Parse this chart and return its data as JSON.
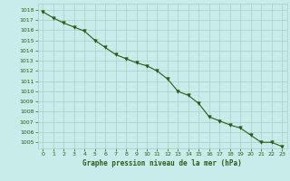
{
  "x": [
    0,
    1,
    2,
    3,
    4,
    5,
    6,
    7,
    8,
    9,
    10,
    11,
    12,
    13,
    14,
    15,
    16,
    17,
    18,
    19,
    20,
    21,
    22,
    23
  ],
  "y": [
    1017.8,
    1017.2,
    1016.7,
    1016.3,
    1015.9,
    1015.0,
    1014.3,
    1013.6,
    1013.2,
    1012.8,
    1012.5,
    1012.0,
    1011.2,
    1010.0,
    1009.6,
    1008.8,
    1007.5,
    1007.1,
    1006.7,
    1006.4,
    1005.7,
    1005.0,
    1005.0,
    1004.6
  ],
  "line_color": "#2d5a1b",
  "marker": "v",
  "marker_size": 2.5,
  "bg_color": "#c8ece9",
  "grid_color": "#a8cfc8",
  "xlabel": "Graphe pression niveau de la mer (hPa)",
  "xlabel_color": "#2d5a1b",
  "tick_color": "#2d5a1b",
  "ylim_min": 1004.4,
  "ylim_max": 1018.6,
  "xticks": [
    0,
    1,
    2,
    3,
    4,
    5,
    6,
    7,
    8,
    9,
    10,
    11,
    12,
    13,
    14,
    15,
    16,
    17,
    18,
    19,
    20,
    21,
    22,
    23
  ],
  "yticks": [
    1005,
    1006,
    1007,
    1008,
    1009,
    1010,
    1011,
    1012,
    1013,
    1014,
    1015,
    1016,
    1017,
    1018
  ]
}
